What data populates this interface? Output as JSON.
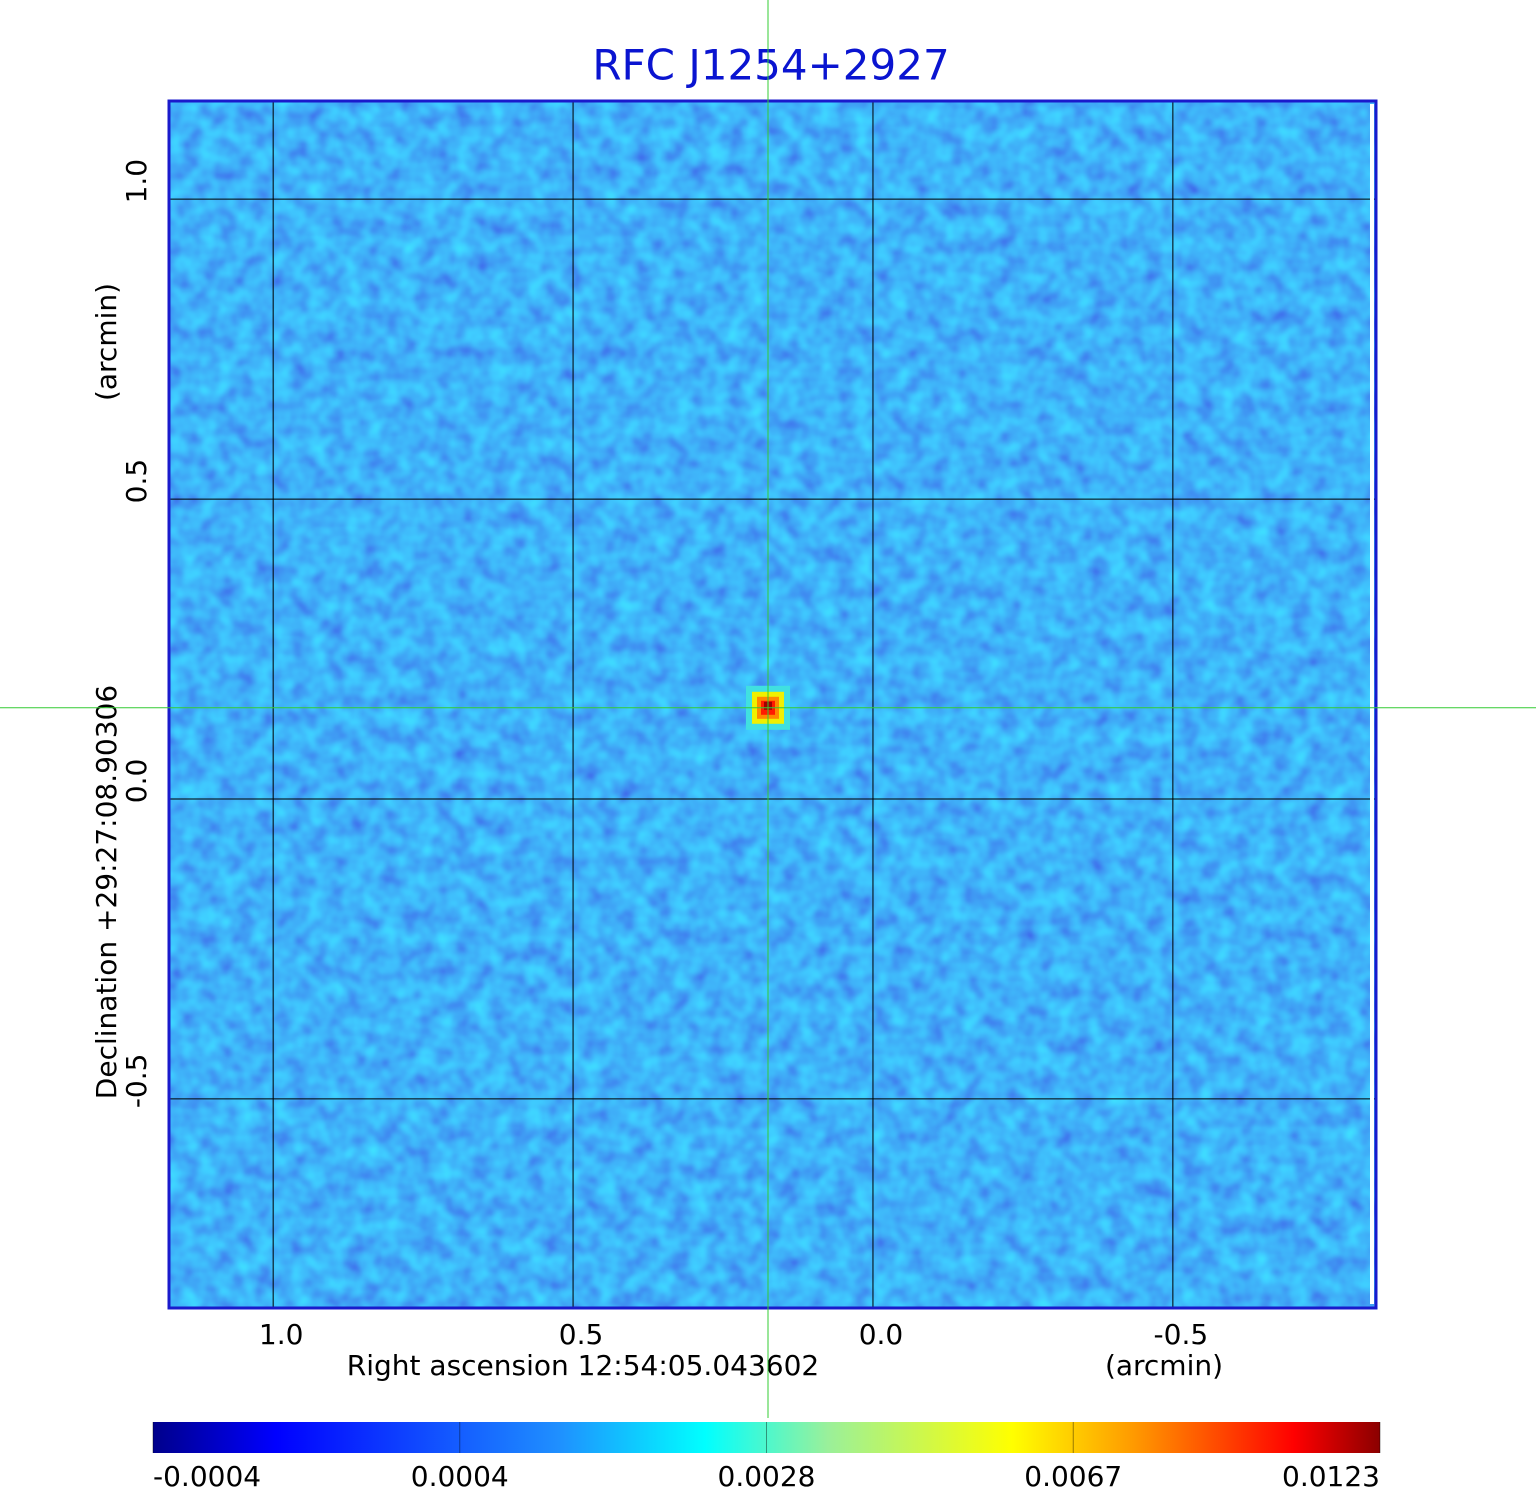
{
  "chart_data": {
    "type": "image",
    "title": "RFC J1254+2927",
    "xlabel": "Right ascension  12:54:05.043602",
    "xunit": "(arcmin)",
    "ylabel": "Declination  +29:27:08.90306",
    "yunit": "(arcmin)",
    "xlim": [
      1.172,
      -0.837
    ],
    "ylim": [
      -0.847,
      1.162
    ],
    "xticks": [
      {
        "value": 1,
        "label": "1.0"
      },
      0.5,
      {
        "value": 0,
        "label": "0.0"
      },
      -0.5
    ],
    "yticks": [
      {
        "value": -0.5,
        "label": "-0.5"
      },
      {
        "value": 0,
        "label": "0.0"
      },
      0.5,
      {
        "value": 1,
        "label": "1.0"
      }
    ],
    "grid": true,
    "source": {
      "x": 0.175,
      "y": 0.152
    },
    "colorbar": {
      "clim": [
        -0.0004,
        0.0123
      ],
      "ticks": [
        -0.0004,
        0.0004,
        0.0028,
        0.0067,
        0.0123
      ]
    }
  }
}
